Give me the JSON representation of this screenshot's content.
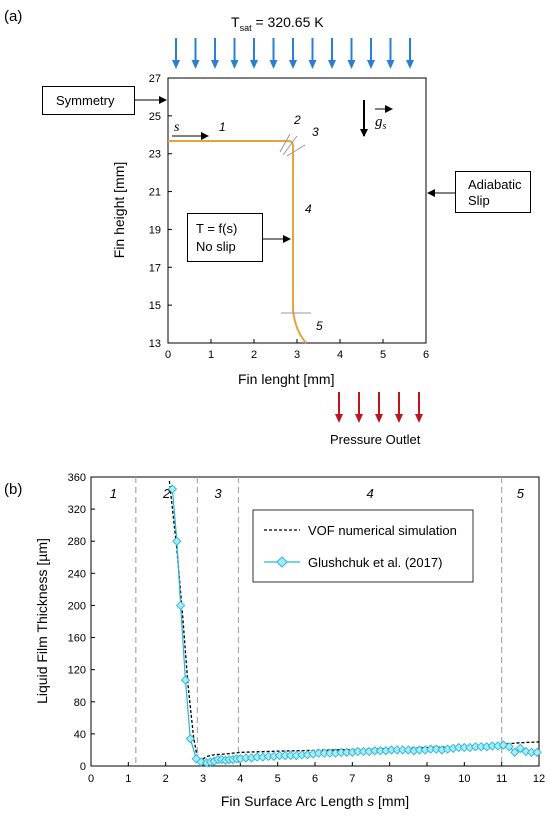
{
  "panel_a": {
    "label": "(a)",
    "tsat_prefix": "T",
    "tsat_sub": "sat",
    "tsat_value": " = 320.65 K",
    "xlabel": "Fin lenght  [mm]",
    "ylabel": "Fin height [mm]",
    "xticks": [
      "0",
      "1",
      "2",
      "3",
      "4",
      "5",
      "6"
    ],
    "yticks": [
      "27",
      "25",
      "23",
      "21",
      "19",
      "17",
      "15",
      "13"
    ],
    "symmetry_label": "Symmetry",
    "adiabatic_label": "Adiabatic",
    "slip_label": "Slip",
    "bc_line1": "T = f(s)",
    "bc_line2": "No slip",
    "s_label": "s",
    "gravity_label": "g",
    "gravity_sub": "s",
    "pressure_outlet_label": "Pressure Outlet",
    "segment_numbers": [
      "1",
      "2",
      "3",
      "4",
      "5"
    ],
    "fin_color": "#e8a33c",
    "inflow_arrow_color": "#2a7fd4",
    "outflow_arrow_color": "#c0141c"
  },
  "panel_b": {
    "label": "(b)",
    "region_numbers": [
      "1",
      "2",
      "3",
      "4",
      "5"
    ],
    "legend_vof": "VOF numerical simulation",
    "legend_exp": "Glushchuk et al. (2017)"
  },
  "chart_data": {
    "type": "line",
    "xlabel_prefix": "Fin Surface Arc Length ",
    "xlabel_var": "s",
    "xlabel_unit": " [mm]",
    "ylabel": "Liquid Film Thickness  [µm]",
    "xlim": [
      0,
      12
    ],
    "ylim": [
      0,
      360
    ],
    "xticks": [
      0,
      1,
      2,
      3,
      4,
      5,
      6,
      7,
      8,
      9,
      10,
      11,
      12
    ],
    "yticks": [
      0,
      40,
      80,
      120,
      160,
      200,
      240,
      280,
      320,
      360
    ],
    "region_boundaries": [
      1.2,
      2.85,
      3.95,
      11.0
    ],
    "grid": false,
    "legend_position": "top-right",
    "series": [
      {
        "name": "VOF numerical simulation",
        "style": "dashed",
        "color": "#000000",
        "x": [
          2.1,
          2.3,
          2.45,
          2.6,
          2.75,
          2.85,
          2.95,
          3.1,
          3.3,
          3.6,
          4.0,
          5.0,
          6.0,
          7.0,
          8.0,
          9.0,
          10.0,
          11.0,
          11.5,
          12.0
        ],
        "y": [
          355,
          270,
          190,
          100,
          35,
          10,
          7,
          12,
          14,
          15,
          17,
          18.5,
          19.5,
          20.5,
          21.5,
          23,
          24.5,
          27,
          29,
          30
        ]
      },
      {
        "name": "Glushchuk et al. (2017)",
        "style": "line-marker",
        "color": "#29b6d4",
        "x": [
          2.18,
          2.3,
          2.4,
          2.53,
          2.66,
          2.82,
          2.95,
          3.1,
          3.2,
          3.3,
          3.4,
          3.5,
          3.6,
          3.7,
          3.8,
          3.9,
          4.0,
          4.15,
          4.3,
          4.45,
          4.6,
          4.75,
          4.9,
          5.05,
          5.2,
          5.35,
          5.5,
          5.65,
          5.8,
          5.95,
          6.1,
          6.25,
          6.4,
          6.55,
          6.7,
          6.85,
          7.0,
          7.15,
          7.3,
          7.45,
          7.6,
          7.75,
          7.9,
          8.05,
          8.2,
          8.35,
          8.5,
          8.65,
          8.8,
          8.95,
          9.1,
          9.25,
          9.4,
          9.55,
          9.7,
          9.85,
          10.0,
          10.15,
          10.3,
          10.45,
          10.6,
          10.75,
          10.9,
          11.05,
          11.2,
          11.35,
          11.5,
          11.65,
          11.8,
          11.95
        ],
        "y": [
          345,
          280,
          200,
          107,
          34,
          9,
          5,
          4,
          5,
          6,
          8,
          8,
          7,
          8,
          8,
          9,
          9,
          10,
          10,
          11,
          11,
          12,
          12,
          13,
          13,
          13,
          13,
          14,
          14,
          15,
          16,
          16,
          16,
          16,
          17,
          17,
          17,
          18,
          18,
          18,
          19,
          19,
          19,
          20,
          20,
          20,
          20,
          19,
          20,
          20,
          21,
          21,
          20,
          21,
          22,
          23,
          23,
          23,
          24,
          24,
          24,
          25,
          25,
          26,
          24,
          17,
          22,
          18,
          17,
          17
        ]
      }
    ]
  }
}
